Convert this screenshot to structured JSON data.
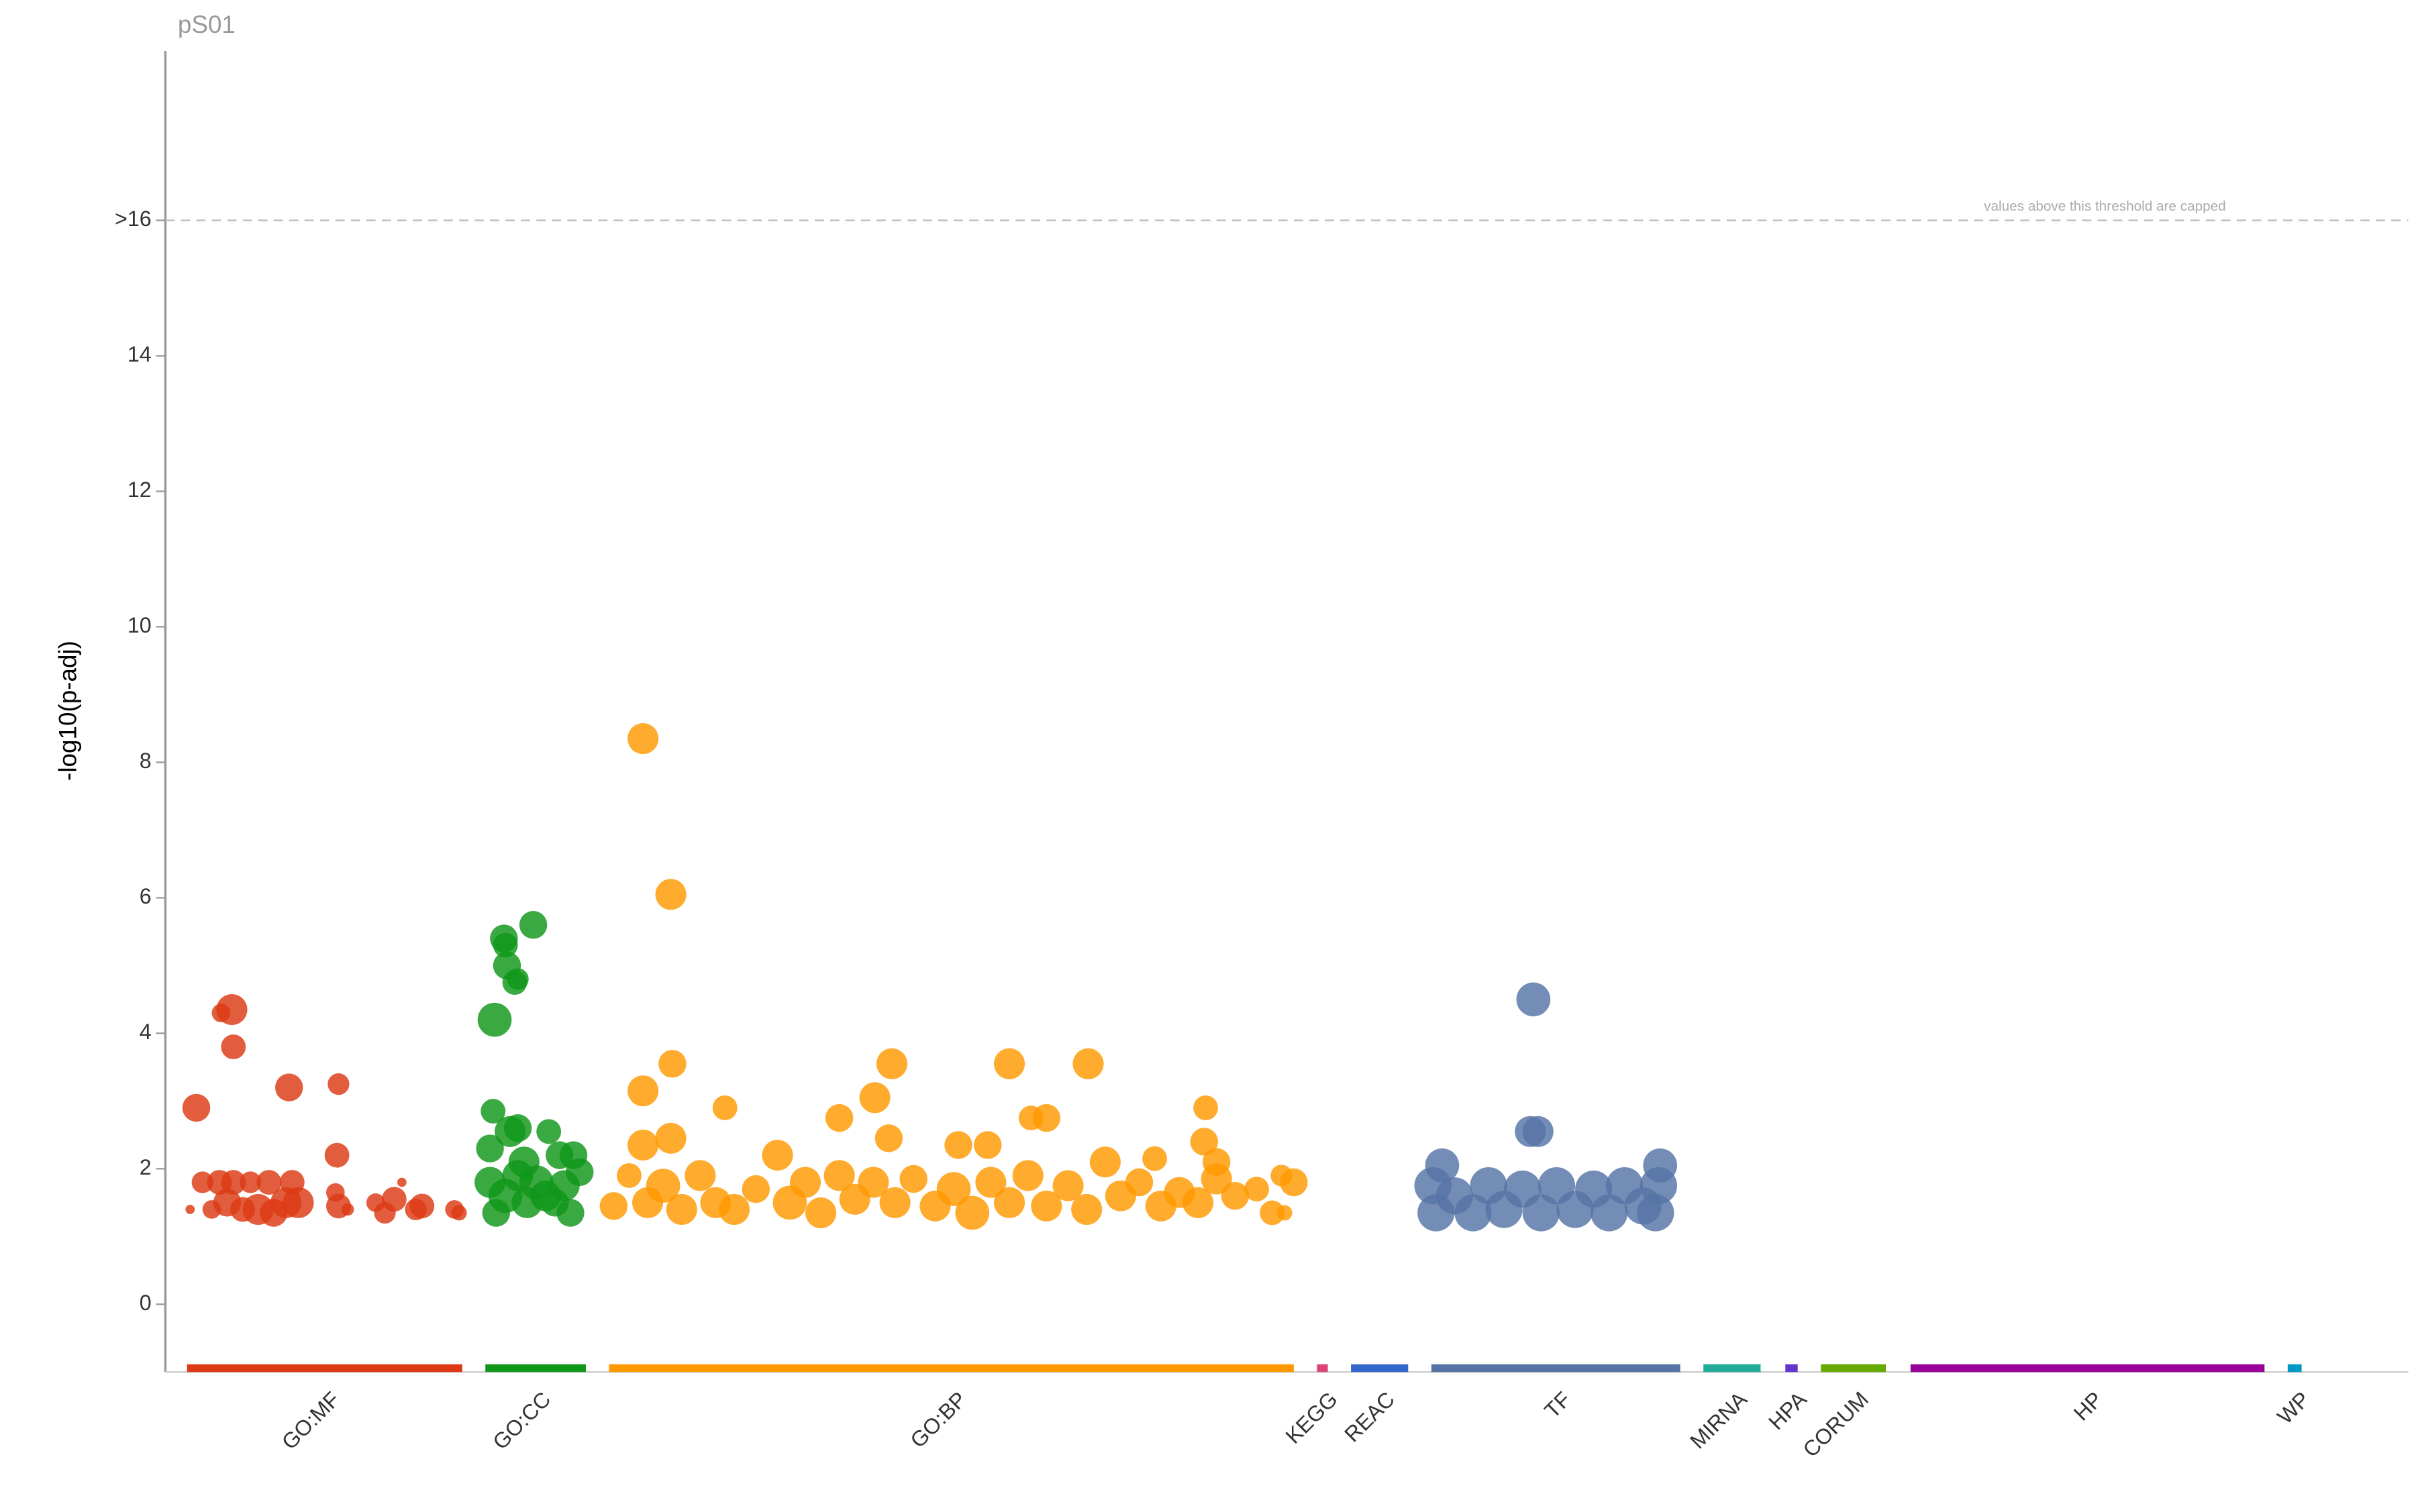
{
  "chart_data": {
    "type": "scatter",
    "title": "pS01",
    "y_label": "-log10(p-adj)",
    "annotation": "values above this threshold are capped",
    "threshold": 16,
    "xlim": [
      0,
      1451
    ],
    "ylim": [
      -1,
      18.5
    ],
    "yticks": [
      0,
      2,
      4,
      6,
      8,
      10,
      12,
      14,
      {
        "value": 16,
        "label": ">16"
      }
    ],
    "series": [
      {
        "name": "GO:MF",
        "color": "#dc3912",
        "range": [
          14,
          192
        ],
        "x": [
          20,
          36,
          43,
          44,
          80,
          112,
          111,
          16,
          24,
          30,
          35,
          40,
          44,
          50,
          55,
          60,
          67,
          70,
          78,
          82,
          86,
          110,
          112,
          118,
          136,
          142,
          148,
          153,
          162,
          166,
          187,
          190
        ],
        "values": [
          2.9,
          4.3,
          4.35,
          3.8,
          3.2,
          3.25,
          2.2,
          1.4,
          1.8,
          1.4,
          1.8,
          1.5,
          1.8,
          1.4,
          1.8,
          1.4,
          1.8,
          1.35,
          1.5,
          1.8,
          1.5,
          1.65,
          1.45,
          1.4,
          1.5,
          1.35,
          1.55,
          1.8,
          1.4,
          1.45,
          1.4,
          1.35
        ],
        "sizes": [
          9,
          6,
          10,
          8,
          9,
          7,
          8,
          3,
          7,
          6,
          8,
          9,
          8,
          8,
          7,
          10,
          8,
          9,
          10,
          8,
          10,
          6,
          8,
          4,
          6,
          7,
          8,
          3,
          7,
          8,
          6,
          5
        ]
      },
      {
        "name": "GO:CC",
        "color": "#109618",
        "range": [
          207,
          272
        ],
        "x": [
          213,
          219,
          220,
          221,
          228,
          226,
          238,
          212,
          210,
          223,
          228,
          248,
          255,
          264,
          210,
          214,
          220,
          228,
          234,
          240,
          246,
          252,
          258,
          262,
          268,
          232
        ],
        "values": [
          4.2,
          5.4,
          5.3,
          5.0,
          4.8,
          4.75,
          5.6,
          2.85,
          2.3,
          2.55,
          2.6,
          2.55,
          2.2,
          2.2,
          1.8,
          1.35,
          1.6,
          1.9,
          1.5,
          1.8,
          1.6,
          1.5,
          1.75,
          1.35,
          1.95,
          2.1
        ],
        "sizes": [
          11,
          9,
          8,
          9,
          7,
          8,
          9,
          8,
          9,
          10,
          9,
          8,
          9,
          9,
          10,
          9,
          11,
          10,
          10,
          11,
          10,
          9,
          10,
          9,
          9,
          10
        ]
      },
      {
        "name": "GO:BP",
        "color": "#ff9900",
        "range": [
          287,
          730
        ],
        "x": [
          309,
          327,
          328,
          309,
          309,
          327,
          362,
          436,
          459,
          470,
          468,
          546,
          560,
          570,
          597,
          673,
          672,
          513,
          532,
          640,
          680,
          290,
          300,
          312,
          322,
          334,
          346,
          356,
          368,
          382,
          396,
          404,
          414,
          424,
          436,
          446,
          458,
          472,
          484,
          498,
          510,
          522,
          534,
          546,
          558,
          570,
          584,
          596,
          608,
          618,
          630,
          644,
          656,
          668,
          680,
          692,
          706,
          716,
          722,
          724,
          730
        ],
        "values": [
          8.35,
          6.05,
          3.55,
          3.15,
          2.35,
          2.45,
          2.9,
          2.75,
          3.05,
          3.55,
          2.45,
          3.55,
          2.75,
          2.75,
          3.55,
          2.9,
          2.4,
          2.35,
          2.35,
          2.15,
          2.1,
          1.45,
          1.9,
          1.5,
          1.75,
          1.4,
          1.9,
          1.5,
          1.4,
          1.7,
          2.2,
          1.5,
          1.8,
          1.35,
          1.9,
          1.55,
          1.8,
          1.5,
          1.85,
          1.45,
          1.7,
          1.35,
          1.8,
          1.5,
          1.9,
          1.45,
          1.75,
          1.4,
          2.1,
          1.6,
          1.8,
          1.45,
          1.65,
          1.5,
          1.85,
          1.6,
          1.7,
          1.35,
          1.9,
          1.35,
          1.8
        ],
        "sizes": [
          10,
          10,
          9,
          10,
          10,
          10,
          8,
          9,
          10,
          10,
          9,
          10,
          8,
          9,
          10,
          8,
          9,
          9,
          9,
          8,
          9,
          9,
          8,
          10,
          11,
          10,
          10,
          10,
          10,
          9,
          10,
          11,
          10,
          10,
          10,
          10,
          10,
          10,
          9,
          10,
          11,
          11,
          10,
          10,
          10,
          10,
          10,
          10,
          10,
          10,
          9,
          10,
          10,
          10,
          10,
          9,
          8,
          8,
          7,
          5,
          9
        ]
      },
      {
        "name": "KEGG",
        "color": "#dd4477",
        "range": [
          745,
          752
        ],
        "x": [],
        "values": [],
        "sizes": []
      },
      {
        "name": "REAC",
        "color": "#3366cc",
        "range": [
          767,
          804
        ],
        "x": [],
        "values": [],
        "sizes": []
      },
      {
        "name": "TF",
        "color": "#5574a6",
        "range": [
          819,
          980
        ],
        "x": [
          885,
          826,
          883,
          888,
          967,
          820,
          822,
          834,
          846,
          856,
          866,
          878,
          890,
          900,
          912,
          924,
          934,
          944,
          956,
          966,
          964
        ],
        "values": [
          4.5,
          2.05,
          2.55,
          2.55,
          2.05,
          1.75,
          1.35,
          1.6,
          1.35,
          1.75,
          1.4,
          1.7,
          1.35,
          1.75,
          1.4,
          1.7,
          1.35,
          1.75,
          1.45,
          1.75,
          1.35
        ],
        "sizes": [
          11,
          11,
          10,
          10,
          11,
          12,
          12,
          12,
          12,
          12,
          12,
          12,
          12,
          12,
          12,
          12,
          12,
          12,
          12,
          12,
          12
        ]
      },
      {
        "name": "MIRNA",
        "color": "#22aa99",
        "range": [
          995,
          1032
        ],
        "x": [],
        "values": [],
        "sizes": []
      },
      {
        "name": "HPA",
        "color": "#6633cc",
        "range": [
          1048,
          1056
        ],
        "x": [],
        "values": [],
        "sizes": []
      },
      {
        "name": "CORUM",
        "color": "#66aa00",
        "range": [
          1071,
          1113
        ],
        "x": [],
        "values": [],
        "sizes": []
      },
      {
        "name": "HP",
        "color": "#990099",
        "range": [
          1129,
          1358
        ],
        "x": [],
        "values": [],
        "sizes": []
      },
      {
        "name": "WP",
        "color": "#0099c6",
        "range": [
          1373,
          1382
        ],
        "x": [],
        "values": [],
        "sizes": []
      }
    ]
  }
}
